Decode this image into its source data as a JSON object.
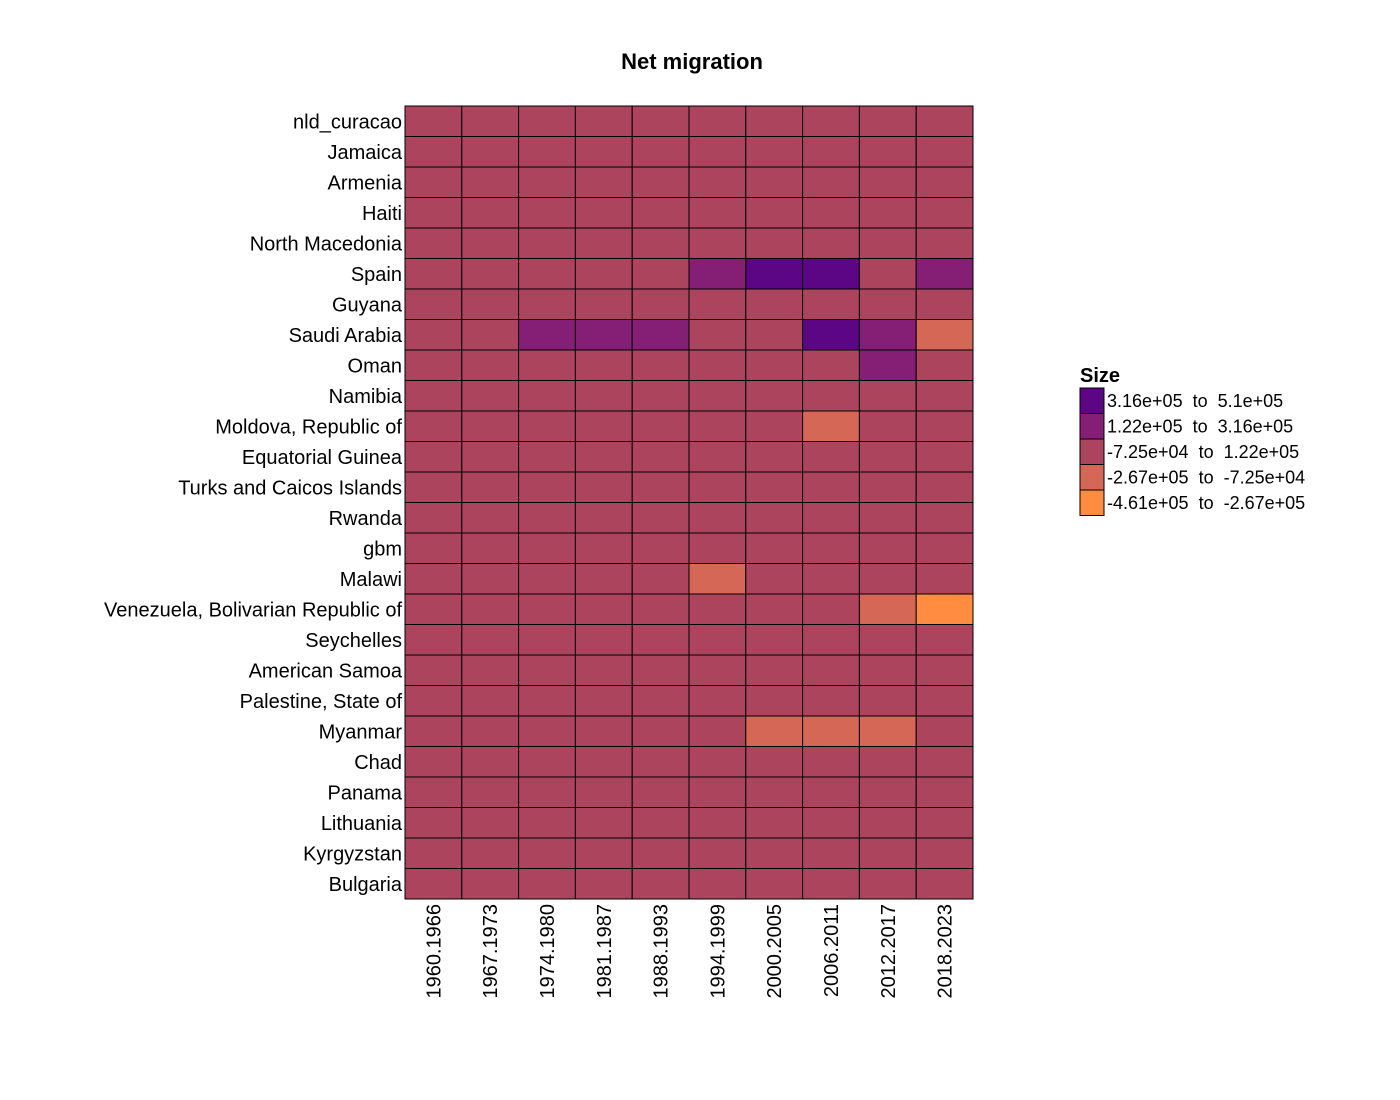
{
  "chart_data": {
    "type": "heatmap",
    "title": "Net migration",
    "xlabel": "",
    "ylabel": "",
    "x": [
      "1960.1966",
      "1967.1973",
      "1974.1980",
      "1981.1987",
      "1988.1993",
      "1994.1999",
      "2000.2005",
      "2006.2011",
      "2012.2017",
      "2018.2023"
    ],
    "y": [
      "nld_curacao",
      "Jamaica",
      "Armenia",
      "Haiti",
      "North Macedonia",
      "Spain",
      "Guyana",
      "Saudi Arabia",
      "Oman",
      "Namibia",
      "Moldova, Republic of",
      "Equatorial Guinea",
      "Turks and Caicos Islands",
      "Rwanda",
      "gbm",
      "Malawi",
      "Venezuela, Bolivarian Republic of",
      "Seychelles",
      "American Samoa",
      "Palestine, State of",
      "Myanmar",
      "Chad",
      "Panama",
      "Lithuania",
      "Kyrgyzstan",
      "Bulgaria"
    ],
    "legend": {
      "title": "Size",
      "position": "right",
      "bins": [
        {
          "label": "3.16e+05  to  5.1e+05",
          "color": "#5c0585"
        },
        {
          "label": "1.22e+05  to  3.16e+05",
          "color": "#841f75"
        },
        {
          "label": "-7.25e+04  to  1.22e+05",
          "color": "#ad445e"
        },
        {
          "label": "-2.67e+05  to  -7.25e+04",
          "color": "#d56756"
        },
        {
          "label": "-4.61e+05  to  -2.67e+05",
          "color": "#ff8c40"
        }
      ]
    },
    "bin_matrix": [
      [
        2,
        2,
        2,
        2,
        2,
        2,
        2,
        2,
        2,
        2
      ],
      [
        2,
        2,
        2,
        2,
        2,
        2,
        2,
        2,
        2,
        2
      ],
      [
        2,
        2,
        2,
        2,
        2,
        2,
        2,
        2,
        2,
        2
      ],
      [
        2,
        2,
        2,
        2,
        2,
        2,
        2,
        2,
        2,
        2
      ],
      [
        2,
        2,
        2,
        2,
        2,
        2,
        2,
        2,
        2,
        2
      ],
      [
        2,
        2,
        2,
        2,
        2,
        1,
        0,
        0,
        2,
        1
      ],
      [
        2,
        2,
        2,
        2,
        2,
        2,
        2,
        2,
        2,
        2
      ],
      [
        2,
        2,
        1,
        1,
        1,
        2,
        2,
        0,
        1,
        3
      ],
      [
        2,
        2,
        2,
        2,
        2,
        2,
        2,
        2,
        1,
        2
      ],
      [
        2,
        2,
        2,
        2,
        2,
        2,
        2,
        2,
        2,
        2
      ],
      [
        2,
        2,
        2,
        2,
        2,
        2,
        2,
        3,
        2,
        2
      ],
      [
        2,
        2,
        2,
        2,
        2,
        2,
        2,
        2,
        2,
        2
      ],
      [
        2,
        2,
        2,
        2,
        2,
        2,
        2,
        2,
        2,
        2
      ],
      [
        2,
        2,
        2,
        2,
        2,
        2,
        2,
        2,
        2,
        2
      ],
      [
        2,
        2,
        2,
        2,
        2,
        2,
        2,
        2,
        2,
        2
      ],
      [
        2,
        2,
        2,
        2,
        2,
        3,
        2,
        2,
        2,
        2
      ],
      [
        2,
        2,
        2,
        2,
        2,
        2,
        2,
        2,
        3,
        4
      ],
      [
        2,
        2,
        2,
        2,
        2,
        2,
        2,
        2,
        2,
        2
      ],
      [
        2,
        2,
        2,
        2,
        2,
        2,
        2,
        2,
        2,
        2
      ],
      [
        2,
        2,
        2,
        2,
        2,
        2,
        2,
        2,
        2,
        2
      ],
      [
        2,
        2,
        2,
        2,
        2,
        2,
        3,
        3,
        3,
        2
      ],
      [
        2,
        2,
        2,
        2,
        2,
        2,
        2,
        2,
        2,
        2
      ],
      [
        2,
        2,
        2,
        2,
        2,
        2,
        2,
        2,
        2,
        2
      ],
      [
        2,
        2,
        2,
        2,
        2,
        2,
        2,
        2,
        2,
        2
      ],
      [
        2,
        2,
        2,
        2,
        2,
        2,
        2,
        2,
        2,
        2
      ],
      [
        2,
        2,
        2,
        2,
        2,
        2,
        2,
        2,
        2,
        2
      ]
    ],
    "grid": true
  }
}
